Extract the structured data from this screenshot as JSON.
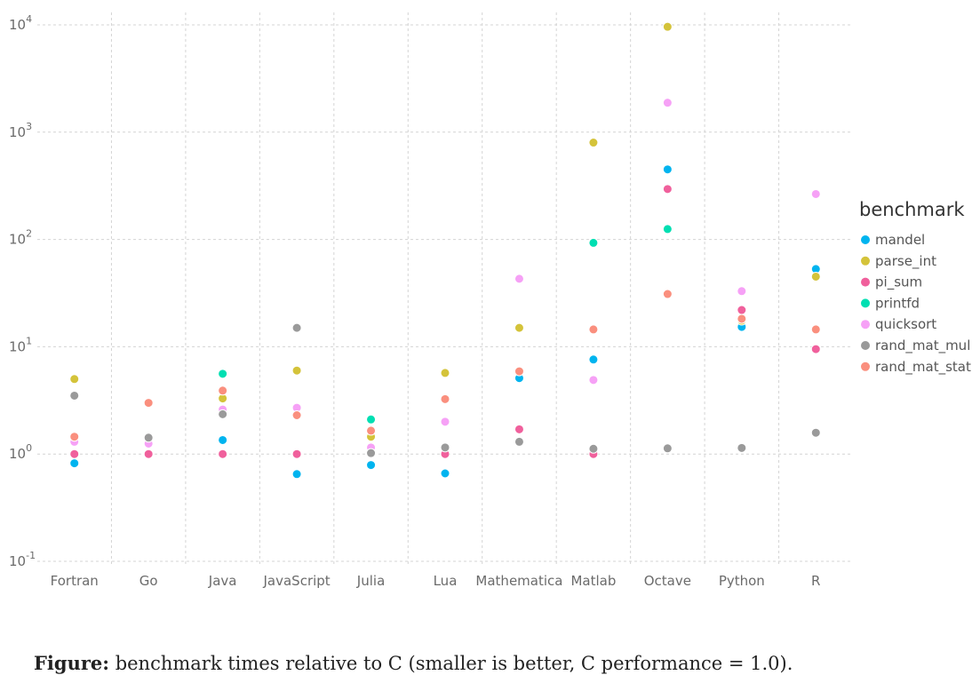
{
  "chart_data": {
    "type": "scatter",
    "title": "",
    "xlabel": "",
    "ylabel": "",
    "yscale": "log",
    "ylim_exponents": [
      -1,
      4
    ],
    "y_tick_exponents": [
      -1,
      0,
      1,
      2,
      3,
      4
    ],
    "grid": true,
    "legend_position": "right",
    "legend_title": "benchmark",
    "categories": [
      "Fortran",
      "Go",
      "Java",
      "JavaScript",
      "Julia",
      "Lua",
      "Mathematica",
      "Matlab",
      "Octave",
      "Python",
      "R"
    ],
    "series": [
      {
        "name": "mandel",
        "color": "#00B4EF",
        "values": [
          0.82,
          null,
          1.35,
          0.65,
          0.79,
          0.66,
          5.1,
          7.6,
          450,
          15.3,
          53
        ]
      },
      {
        "name": "parse_int",
        "color": "#D4C33A",
        "values": [
          5.0,
          null,
          3.3,
          6.0,
          1.45,
          5.7,
          15,
          800,
          9600,
          17.5,
          45
        ]
      },
      {
        "name": "pi_sum",
        "color": "#F0609C",
        "values": [
          1.0,
          1.0,
          1.0,
          1.0,
          null,
          1.0,
          1.7,
          1.0,
          295,
          22,
          9.5
        ]
      },
      {
        "name": "printfd",
        "color": "#00DFB2",
        "values": [
          null,
          null,
          5.6,
          null,
          2.1,
          null,
          null,
          93,
          125,
          null,
          null
        ]
      },
      {
        "name": "quicksort",
        "color": "#F6A1F6",
        "values": [
          1.3,
          1.25,
          2.6,
          2.7,
          1.15,
          2.0,
          43,
          4.9,
          1880,
          33,
          265
        ]
      },
      {
        "name": "rand_mat_mul",
        "color": "#9A9A9A",
        "values": [
          3.5,
          1.42,
          2.35,
          15,
          1.02,
          1.15,
          1.3,
          1.12,
          1.13,
          1.14,
          1.58
        ]
      },
      {
        "name": "rand_mat_stat",
        "color": "#FA8F7E",
        "values": [
          1.45,
          3.0,
          3.9,
          2.3,
          1.65,
          3.25,
          5.9,
          14.5,
          31,
          18.2,
          14.5
        ]
      }
    ]
  },
  "caption": {
    "label": "Figure:",
    "text": " benchmark times relative to C (smaller is better, C performance = 1.0)."
  }
}
